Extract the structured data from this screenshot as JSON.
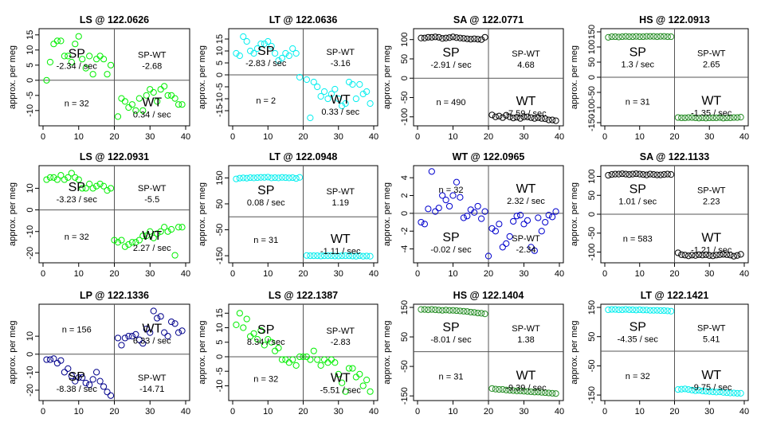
{
  "chart_data": [
    {
      "type": "scatter",
      "title": "LS @ 122.0626",
      "color": "#00ee00",
      "ylabel": "approx. per meg",
      "ylim": [
        -14,
        16
      ],
      "yticks": [
        -10,
        -5,
        0,
        5,
        10,
        15
      ],
      "xlim": [
        0,
        40
      ],
      "xticks": [
        0,
        10,
        20,
        30,
        40
      ],
      "divider_y": 0,
      "annotations": {
        "sp": "SP",
        "sp_rate": "-2.34 / sec",
        "sp_wt": "SP-WT",
        "sp_wt_val": "-2.68",
        "n": "n = 32",
        "wt": "WT",
        "wt_rate": "0.34 / sec"
      },
      "x": [
        1,
        2,
        3,
        4,
        5,
        6,
        7,
        8,
        9,
        10,
        11,
        12,
        13,
        14,
        15,
        16,
        17,
        18,
        19,
        21,
        22,
        23,
        24,
        25,
        26,
        27,
        28,
        29,
        30,
        31,
        32,
        33,
        34,
        35,
        36,
        37,
        38,
        39
      ],
      "y": [
        0,
        6,
        12,
        13,
        13,
        8,
        8,
        6,
        12,
        14.5,
        7,
        4,
        8,
        2,
        7,
        8,
        7,
        2,
        5,
        -12,
        -6,
        -7,
        -9,
        -8,
        -10,
        -6,
        -10,
        -5,
        -3,
        -4,
        -7,
        -3,
        -2,
        -5,
        -5,
        -6,
        -8,
        -8
      ]
    },
    {
      "type": "scatter",
      "title": "LT @ 122.0636",
      "color": "#00eeee",
      "ylabel": "approx. per meg",
      "ylim": [
        -20,
        18
      ],
      "yticks": [
        -15,
        -10,
        -5,
        0,
        5,
        10,
        15
      ],
      "xlim": [
        0,
        40
      ],
      "xticks": [
        0,
        10,
        20,
        30,
        40
      ],
      "divider_y": 0,
      "annotations": {
        "sp": "SP",
        "sp_rate": "-2.83 / sec",
        "sp_wt": "SP-WT",
        "sp_wt_val": "-3.16",
        "n": "n = 2",
        "wt": "WT",
        "wt_rate": "0.33 / sec"
      },
      "x": [
        1,
        2,
        3,
        4,
        5,
        6,
        7,
        8,
        9,
        10,
        11,
        12,
        13,
        14,
        15,
        16,
        17,
        18,
        19,
        21,
        22,
        23,
        24,
        25,
        26,
        27,
        28,
        29,
        30,
        31,
        32,
        33,
        34,
        35,
        36,
        37,
        38,
        39
      ],
      "y": [
        9,
        8,
        16,
        14,
        10,
        9,
        11,
        13,
        13,
        14,
        12,
        9,
        6,
        7,
        9,
        8,
        11,
        9,
        -1,
        -2,
        -18,
        -3,
        -5,
        -9,
        -7,
        -10,
        -8,
        -6,
        -10,
        -13,
        -12,
        -3,
        -4,
        -10,
        -4,
        -8,
        -7,
        -12
      ]
    },
    {
      "type": "scatter",
      "title": "SA @ 122.0771",
      "color": "#000000",
      "ylabel": "approx. per meg",
      "ylim": [
        -115,
        120
      ],
      "yticks": [
        -100,
        -50,
        0,
        50,
        100
      ],
      "xlim": [
        0,
        40
      ],
      "xticks": [
        0,
        10,
        20,
        30,
        40
      ],
      "divider_y": 0,
      "annotations": {
        "sp": "SP",
        "sp_rate": "-2.91 / sec",
        "sp_wt": "SP-WT",
        "sp_wt_val": "4.68",
        "n": "n = 490",
        "wt": "WT",
        "wt_rate": "-7.59 / sec"
      },
      "x": [
        1,
        2,
        3,
        4,
        5,
        6,
        7,
        8,
        9,
        10,
        11,
        12,
        13,
        14,
        15,
        16,
        17,
        18,
        19,
        21,
        22,
        23,
        24,
        25,
        26,
        27,
        28,
        29,
        30,
        31,
        32,
        33,
        34,
        35,
        36,
        37,
        38,
        39
      ],
      "y": [
        104,
        104,
        106,
        106,
        107,
        106,
        103,
        104,
        105,
        107,
        105,
        104,
        103,
        102,
        101,
        102,
        101,
        100,
        106,
        -95,
        -100,
        -98,
        -102,
        -96,
        -100,
        -103,
        -101,
        -104,
        -100,
        -100,
        -102,
        -104,
        -102,
        -104,
        -105,
        -108,
        -108,
        -110
      ]
    },
    {
      "type": "scatter",
      "title": "HS @ 122.0913",
      "color": "#228b22",
      "ylabel": "approx. per meg",
      "ylim": [
        -150,
        150
      ],
      "yticks": [
        -150,
        -100,
        -50,
        0,
        50,
        100,
        150
      ],
      "xlim": [
        0,
        40
      ],
      "xticks": [
        0,
        10,
        20,
        30,
        40
      ],
      "divider_y": 0,
      "annotations": {
        "sp": "SP",
        "sp_rate": "1.3 / sec",
        "sp_wt": "SP-WT",
        "sp_wt_val": "2.65",
        "n": "n = 31",
        "wt": "WT",
        "wt_rate": "-1.35 / sec"
      },
      "x": [
        1,
        2,
        3,
        4,
        5,
        6,
        7,
        8,
        9,
        10,
        11,
        12,
        13,
        14,
        15,
        16,
        17,
        18,
        19,
        21,
        22,
        23,
        24,
        25,
        26,
        27,
        28,
        29,
        30,
        31,
        32,
        33,
        34,
        35,
        36,
        37,
        38,
        39
      ],
      "y": [
        132,
        134,
        134,
        133,
        134,
        135,
        134,
        134,
        135,
        134,
        134,
        135,
        135,
        135,
        134,
        135,
        135,
        134,
        134,
        -133,
        -134,
        -134,
        -133,
        -133,
        -134,
        -135,
        -134,
        -135,
        -134,
        -134,
        -134,
        -133,
        -135,
        -134,
        -134,
        -133,
        -133,
        -132
      ]
    },
    {
      "type": "scatter",
      "title": "LS @ 122.0931",
      "color": "#00ee00",
      "ylabel": "approx. per meg",
      "ylim": [
        -23,
        19
      ],
      "yticks": [
        -20,
        -10,
        0,
        10
      ],
      "xlim": [
        0,
        40
      ],
      "xticks": [
        0,
        10,
        20,
        30,
        40
      ],
      "divider_y": 0,
      "annotations": {
        "sp": "SP",
        "sp_rate": "-3.23 / sec",
        "sp_wt": "SP-WT",
        "sp_wt_val": "-5.5",
        "n": "n = 32",
        "wt": "WT",
        "wt_rate": "2.27 / sec"
      },
      "x": [
        1,
        2,
        3,
        4,
        5,
        6,
        7,
        8,
        9,
        10,
        11,
        12,
        13,
        14,
        15,
        16,
        17,
        18,
        19,
        20,
        21,
        22,
        23,
        24,
        25,
        26,
        27,
        28,
        29,
        30,
        31,
        32,
        33,
        34,
        35,
        36,
        37,
        38,
        39
      ],
      "y": [
        14,
        15,
        15,
        14,
        16,
        14,
        15,
        17,
        15,
        14,
        10,
        10,
        12,
        10,
        11,
        12,
        11,
        9,
        10,
        -14,
        -15,
        -14,
        -17,
        -16,
        -15,
        -15,
        -14,
        -12,
        -12,
        -10,
        -13,
        -11,
        -10,
        -8,
        -10,
        -9,
        -21,
        -8,
        -8
      ]
    },
    {
      "type": "scatter",
      "title": "LT @ 122.0948",
      "color": "#00eeee",
      "ylabel": "approx. per meg",
      "ylim": [
        -165,
        185
      ],
      "yticks": [
        -150,
        -50,
        50,
        150
      ],
      "xlim": [
        0,
        40
      ],
      "xticks": [
        0,
        10,
        20,
        30,
        40
      ],
      "divider_y": 0,
      "annotations": {
        "sp": "SP",
        "sp_rate": "0.08 / sec",
        "sp_wt": "SP-WT",
        "sp_wt_val": "1.19",
        "n": "n = 31",
        "wt": "WT",
        "wt_rate": "-1.11 / sec"
      },
      "x": [
        1,
        2,
        3,
        4,
        5,
        6,
        7,
        8,
        9,
        10,
        11,
        12,
        13,
        14,
        15,
        16,
        17,
        18,
        19,
        21,
        22,
        23,
        24,
        25,
        26,
        27,
        28,
        29,
        30,
        31,
        32,
        33,
        34,
        35,
        36,
        37,
        38,
        39
      ],
      "y": [
        146,
        149,
        150,
        149,
        151,
        150,
        151,
        152,
        152,
        153,
        150,
        151,
        150,
        152,
        151,
        150,
        151,
        148,
        152,
        -149,
        -150,
        -150,
        -150,
        -151,
        -150,
        -150,
        -150,
        -151,
        -151,
        -150,
        -150,
        -150,
        -151,
        -152,
        -150,
        -152,
        -151,
        -152
      ]
    },
    {
      "type": "scatter",
      "title": "WT @ 122.0965",
      "color": "#0000cd",
      "ylabel": "approx. per meg",
      "ylim": [
        -5.2,
        5
      ],
      "yticks": [
        -4,
        -2,
        0,
        2,
        4
      ],
      "xlim": [
        0,
        40
      ],
      "xticks": [
        0,
        10,
        20,
        30,
        40
      ],
      "divider_y": 0,
      "annotations": {
        "n": "n = 32",
        "wt": "WT",
        "wt_rate": "2.32 / sec",
        "sp": "SP",
        "sp_rate": "-0.02 / sec",
        "sp_wt": "SP-WT",
        "sp_wt_val": "-2.34"
      },
      "x": [
        1,
        2,
        3,
        4,
        5,
        6,
        7,
        8,
        9,
        10,
        11,
        12,
        13,
        14,
        15,
        16,
        17,
        18,
        19,
        20,
        21,
        22,
        23,
        24,
        25,
        26,
        27,
        28,
        29,
        30,
        31,
        32,
        33,
        34,
        35,
        36,
        37,
        38,
        39
      ],
      "y": [
        -1,
        -1.2,
        0.5,
        4.7,
        0.2,
        0.6,
        2,
        1.5,
        0.8,
        2,
        3.5,
        1.8,
        -0.5,
        -0.3,
        0.4,
        0.1,
        0.8,
        -0.6,
        0.2,
        -4.8,
        -1.7,
        -2,
        -1.2,
        -3.8,
        -3.4,
        -2.6,
        -0.9,
        -0.3,
        -0.2,
        -1.2,
        -0.8,
        -3.8,
        -4.2,
        -0.5,
        -2,
        -1,
        -0.2,
        -0.4,
        0.2
      ]
    },
    {
      "type": "scatter",
      "title": "SA @ 122.1133",
      "color": "#000000",
      "ylabel": "approx. per meg",
      "ylim": [
        -120,
        120
      ],
      "yticks": [
        -100,
        -50,
        0,
        50,
        100
      ],
      "xlim": [
        0,
        40
      ],
      "xticks": [
        0,
        10,
        20,
        30,
        40
      ],
      "divider_y": 0,
      "annotations": {
        "sp": "SP",
        "sp_rate": "1.01 / sec",
        "sp_wt": "SP-WT",
        "sp_wt_val": "2.23",
        "n": "n = 583",
        "wt": "WT",
        "wt_rate": "-1.21 / sec"
      },
      "x": [
        1,
        2,
        3,
        4,
        5,
        6,
        7,
        8,
        9,
        10,
        11,
        12,
        13,
        14,
        15,
        16,
        17,
        18,
        19,
        21,
        22,
        23,
        24,
        25,
        26,
        27,
        28,
        29,
        30,
        31,
        32,
        33,
        34,
        35,
        36,
        37,
        38,
        39
      ],
      "y": [
        103,
        105,
        106,
        106,
        107,
        106,
        105,
        106,
        107,
        106,
        105,
        104,
        106,
        105,
        104,
        104,
        105,
        106,
        105,
        -102,
        -107,
        -108,
        -110,
        -108,
        -109,
        -107,
        -108,
        -107,
        -109,
        -110,
        -108,
        -107,
        -106,
        -107,
        -108,
        -111,
        -109,
        -106
      ]
    },
    {
      "type": "scatter",
      "title": "LP @ 122.1336",
      "color": "#00008b",
      "ylabel": "approx. per meg",
      "ylim": [
        -24,
        26
      ],
      "yticks": [
        -20,
        -10,
        0,
        10
      ],
      "xlim": [
        0,
        40
      ],
      "xticks": [
        0,
        10,
        20,
        30,
        40
      ],
      "divider_y": 0,
      "annotations": {
        "n": "n = 156",
        "wt": "WT",
        "wt_rate": "6.33 / sec",
        "sp": "SP",
        "sp_rate": "-8.38 / sec",
        "sp_wt": "SP-WT",
        "sp_wt_val": "-14.71"
      },
      "x": [
        1,
        2,
        3,
        4,
        5,
        6,
        7,
        8,
        9,
        10,
        11,
        12,
        13,
        14,
        15,
        16,
        17,
        18,
        19,
        21,
        22,
        23,
        24,
        25,
        26,
        27,
        28,
        29,
        30,
        31,
        32,
        33,
        34,
        35,
        36,
        37,
        38,
        39
      ],
      "y": [
        -3,
        -3,
        -2.5,
        -5,
        -3.5,
        -10,
        -8,
        -12,
        -15,
        -13,
        -13,
        -16,
        -17,
        -14,
        -10,
        -15,
        -18,
        -21,
        -23,
        9,
        5,
        9,
        10,
        10,
        11,
        8,
        6,
        14,
        12,
        24,
        20,
        21,
        12,
        10,
        18,
        17,
        12,
        13
      ]
    },
    {
      "type": "scatter",
      "title": "LS @ 122.1387",
      "color": "#00ee00",
      "ylabel": "approx. per meg",
      "ylim": [
        -14,
        17
      ],
      "yticks": [
        -10,
        -5,
        0,
        5,
        10,
        15
      ],
      "xlim": [
        0,
        40
      ],
      "xticks": [
        0,
        10,
        20,
        30,
        40
      ],
      "divider_y": 0,
      "annotations": {
        "sp": "SP",
        "sp_rate": "8.34 / sec",
        "sp_wt": "SP-WT",
        "sp_wt_val": "-2.83",
        "n": "n = 32",
        "wt": "WT",
        "wt_rate": "-5.51 / sec"
      },
      "x": [
        1,
        2,
        3,
        4,
        5,
        6,
        7,
        8,
        9,
        10,
        11,
        12,
        13,
        14,
        15,
        16,
        17,
        18,
        19,
        20,
        21,
        22,
        23,
        24,
        25,
        26,
        27,
        28,
        29,
        30,
        31,
        32,
        33,
        34,
        35,
        36,
        37,
        38,
        39
      ],
      "y": [
        11,
        15,
        10,
        13,
        7,
        8,
        6,
        9,
        4,
        6,
        5,
        2,
        3,
        -1,
        -1,
        -2,
        -1,
        -3,
        0,
        0,
        0,
        -1,
        2,
        -1,
        -3,
        -1,
        -2,
        -1,
        -2,
        -6,
        -9,
        -12,
        -4,
        -4,
        -7,
        -6,
        -10,
        -8,
        -12
      ]
    },
    {
      "type": "scatter",
      "title": "HS @ 122.1404",
      "color": "#228b22",
      "ylabel": "approx. per meg",
      "ylim": [
        -155,
        150
      ],
      "yticks": [
        -150,
        -50,
        50,
        150
      ],
      "xlim": [
        0,
        40
      ],
      "xticks": [
        0,
        10,
        20,
        30,
        40
      ],
      "divider_y": 0,
      "annotations": {
        "sp": "SP",
        "sp_rate": "-8.01 / sec",
        "sp_wt": "SP-WT",
        "sp_wt_val": "1.38",
        "n": "n = 31",
        "wt": "WT",
        "wt_rate": "-9.39 / sec"
      },
      "x": [
        1,
        2,
        3,
        4,
        5,
        6,
        7,
        8,
        9,
        10,
        11,
        12,
        13,
        14,
        15,
        16,
        17,
        18,
        19,
        21,
        22,
        23,
        24,
        25,
        26,
        27,
        28,
        29,
        30,
        31,
        32,
        33,
        34,
        35,
        36,
        37,
        38,
        39
      ],
      "y": [
        143,
        143,
        142,
        143,
        142,
        141,
        140,
        141,
        140,
        140,
        139,
        138,
        137,
        136,
        134,
        133,
        131,
        130,
        128,
        -125,
        -127,
        -128,
        -128,
        -130,
        -131,
        -132,
        -133,
        -133,
        -134,
        -135,
        -136,
        -137,
        -137,
        -138,
        -139,
        -140,
        -141,
        -142
      ]
    },
    {
      "type": "scatter",
      "title": "LT @ 122.1421",
      "color": "#00eeee",
      "ylabel": "approx. per meg",
      "ylim": [
        -158,
        150
      ],
      "yticks": [
        -150,
        -50,
        50,
        150
      ],
      "xlim": [
        0,
        40
      ],
      "xticks": [
        0,
        10,
        20,
        30,
        40
      ],
      "divider_y": 0,
      "annotations": {
        "sp": "SP",
        "sp_rate": "-4.35 / sec",
        "sp_wt": "SP-WT",
        "sp_wt_val": "5.41",
        "n": "n = 32",
        "wt": "WT",
        "wt_rate": "-9.75 / sec"
      },
      "x": [
        1,
        2,
        3,
        4,
        5,
        6,
        7,
        8,
        9,
        10,
        11,
        12,
        13,
        14,
        15,
        16,
        17,
        18,
        19,
        21,
        22,
        23,
        24,
        25,
        26,
        27,
        28,
        29,
        30,
        31,
        32,
        33,
        34,
        35,
        36,
        37,
        38,
        39
      ],
      "y": [
        142,
        143,
        143,
        142,
        142,
        143,
        142,
        142,
        141,
        142,
        141,
        141,
        140,
        140,
        140,
        139,
        139,
        138,
        137,
        -131,
        -130,
        -129,
        -131,
        -133,
        -135,
        -134,
        -136,
        -137,
        -138,
        -139,
        -140,
        -139,
        -141,
        -142,
        -143,
        -143,
        -144,
        -144
      ]
    }
  ]
}
